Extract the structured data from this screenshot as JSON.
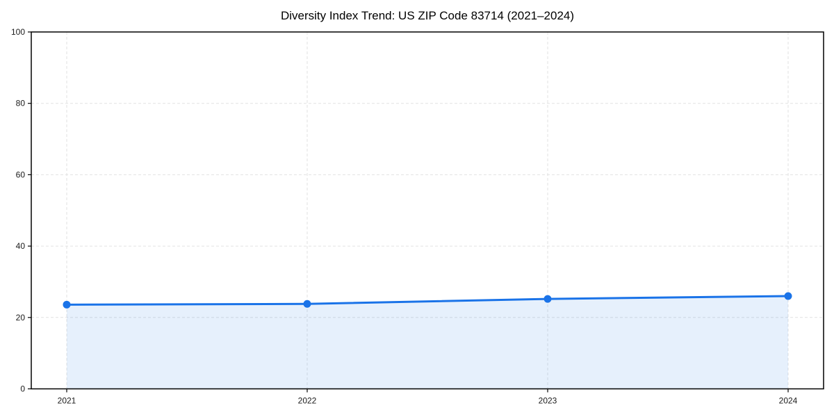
{
  "chart_data": {
    "type": "area",
    "title": "Diversity Index Trend: US ZIP Code 83714 (2021–2024)",
    "x": [
      "2021",
      "2022",
      "2023",
      "2024"
    ],
    "series": [
      {
        "name": "Diversity Index",
        "values": [
          23.6,
          23.8,
          25.2,
          26.0
        ]
      }
    ],
    "xlabel": "",
    "ylabel": "",
    "ylim": [
      0,
      100
    ],
    "yticks": [
      0,
      20,
      40,
      60,
      80,
      100
    ],
    "grid": "dashed-both-axes",
    "legend": "none",
    "colors": {
      "line": "#1a73e8",
      "marker": "#1a73e8",
      "fill": "#1a73e8",
      "fill_opacity": 0.11,
      "grid": "#e2e2e2",
      "spine": "#000000",
      "tick_label": "#1a1a1a",
      "background": "#ffffff"
    }
  }
}
